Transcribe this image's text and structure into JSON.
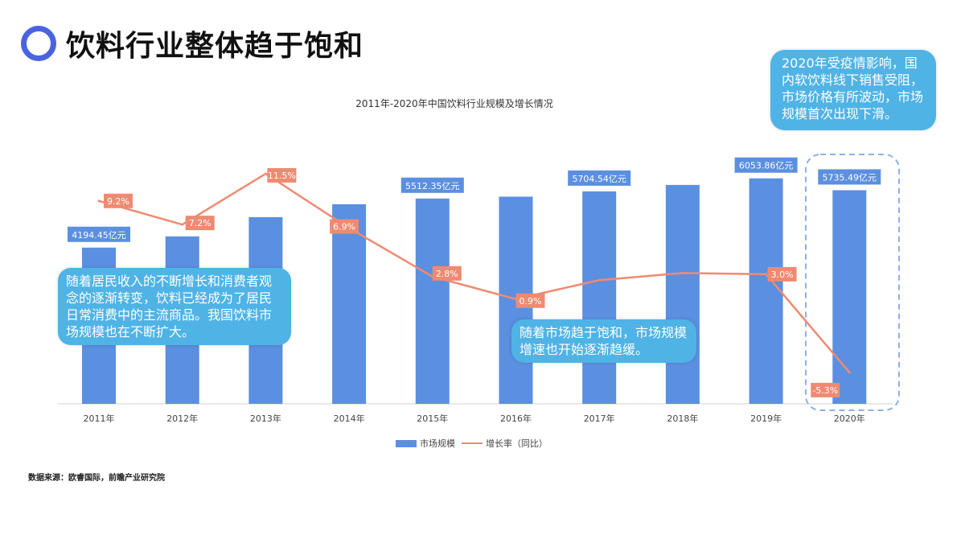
{
  "header": {
    "title": "饮料行业整体趋于饱和",
    "accent": "#4a63e0"
  },
  "chart_data": {
    "type": "bar+line",
    "title": "2011年-2020年中国饮料行业规模及增长情况",
    "categories": [
      "2011年",
      "2012年",
      "2013年",
      "2014年",
      "2015年",
      "2016年",
      "2017年",
      "2018年",
      "2019年",
      "2020年"
    ],
    "series": [
      {
        "name": "市场规模",
        "type": "bar",
        "color": "#5b8fe0",
        "values": [
          4194.45,
          4496,
          5013,
          5359,
          5512.35,
          5562,
          5704.54,
          5877,
          6053.86,
          5735.49
        ],
        "labels": [
          "4194.45亿元",
          "",
          "",
          "",
          "5512.35亿元",
          "",
          "5704.54亿元",
          "",
          "6053.86亿元",
          "5735.49亿元"
        ]
      },
      {
        "name": "增长率（同比）",
        "type": "line",
        "color": "#ef8a72",
        "values": [
          9.2,
          7.2,
          11.5,
          6.9,
          2.8,
          0.9,
          2.5,
          3.1,
          3.0,
          -5.3
        ],
        "labels": [
          "9.2%",
          "7.2%",
          "11.5%",
          "6.9%",
          "2.8%",
          "0.9%",
          "",
          "",
          "3.0%",
          "-5.3%"
        ]
      }
    ],
    "legend": "bottom"
  },
  "callouts": {
    "left": "随着居民收入的不断增长和消费者观念的逐渐转变，饮料已经成为了居民日常消费中的主流商品。我国饮料市场规模也在不断扩大。",
    "middle": "随着市场趋于饱和，市场规模增速也开始逐渐趋缓。",
    "right": "2020年受疫情影响，国内软饮料线下销售受阻，市场价格有所波动，市场规模首次出现下滑。"
  },
  "source": "数据来源：欧睿国际，前瞻产业研究院"
}
